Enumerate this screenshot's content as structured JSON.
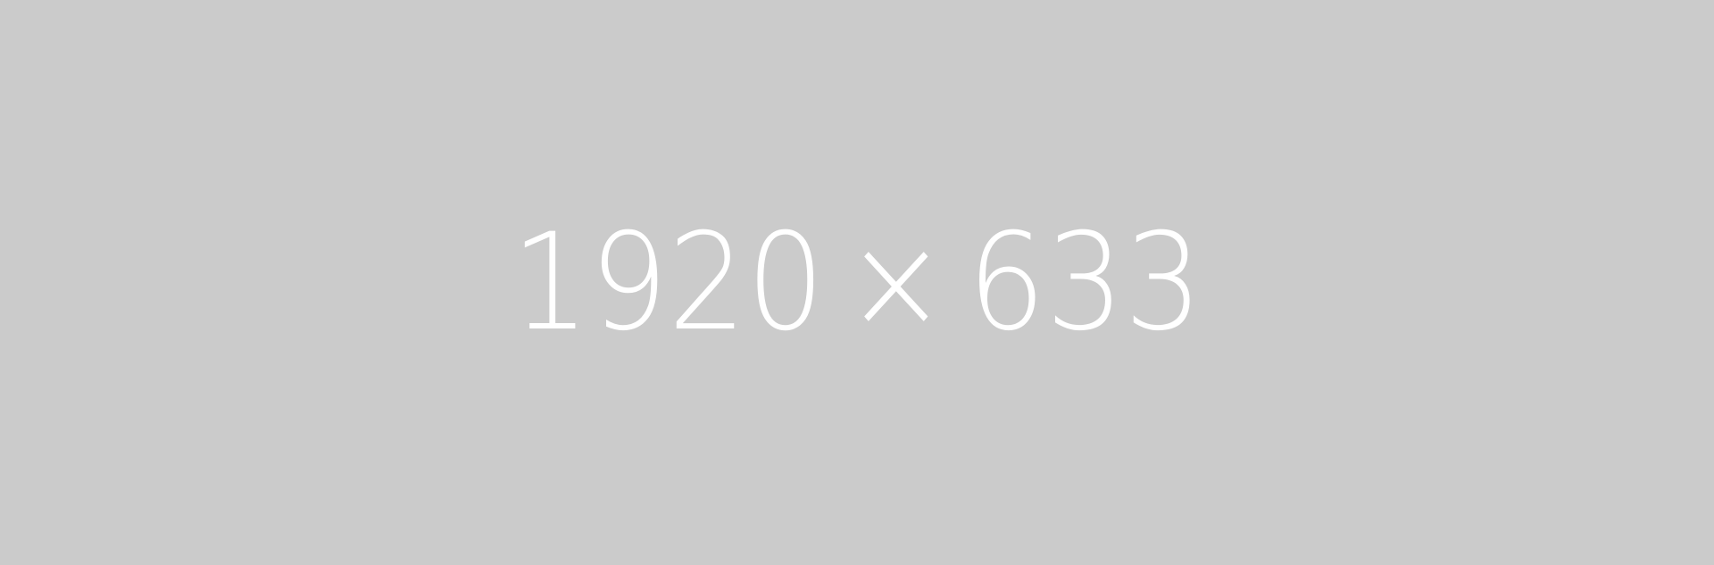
{
  "placeholder": {
    "width_text": "1920",
    "separator": "×",
    "height_text": "633",
    "background_color": "#cbcbcb",
    "text_color": "#ffffff"
  }
}
